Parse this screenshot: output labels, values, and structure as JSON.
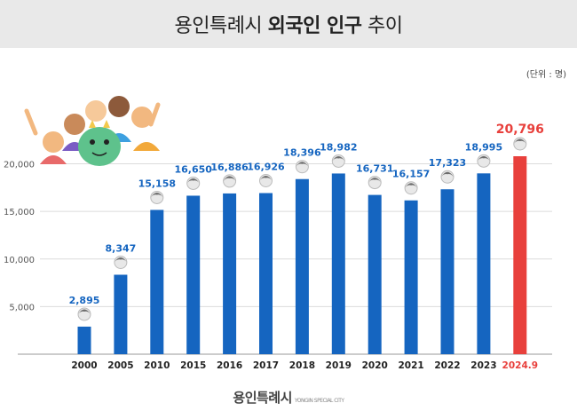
{
  "header": {
    "title_prefix": "용인특례시",
    "title_bold": "외국인 인구",
    "title_suffix": "추이"
  },
  "unit_label": "(단위 : 명)",
  "footer": {
    "logo_text": "용인특례시",
    "logo_sub": "YONGIN SPECIAL CITY"
  },
  "colors": {
    "bar": "#1565c0",
    "highlight": "#e8403c",
    "label": "#1565c0",
    "grid": "#dcdcdc"
  },
  "icons": [
    "person-head-icon",
    "crowd-mascot-illustration"
  ],
  "chart_data": {
    "type": "bar",
    "title": "용인특례시 외국인 인구 추이",
    "categories": [
      "2000",
      "2005",
      "2010",
      "2015",
      "2016",
      "2017",
      "2018",
      "2019",
      "2020",
      "2021",
      "2022",
      "2023",
      "2024.9"
    ],
    "values": [
      2895,
      8347,
      15158,
      16650,
      16886,
      16926,
      18396,
      18982,
      16731,
      16157,
      17323,
      18995,
      20796
    ],
    "value_labels": [
      "2,895",
      "8,347",
      "15,158",
      "16,650",
      "16,886",
      "16,926",
      "18,396",
      "18,982",
      "16,731",
      "16,157",
      "17,323",
      "18,995",
      "20,796"
    ],
    "highlight_index": 12,
    "yticks": [
      5000,
      10000,
      15000,
      20000
    ],
    "ytick_labels": [
      "5,000",
      "10,000",
      "15,000",
      "20,000"
    ],
    "ylim": [
      0,
      20796
    ],
    "grid": true
  }
}
